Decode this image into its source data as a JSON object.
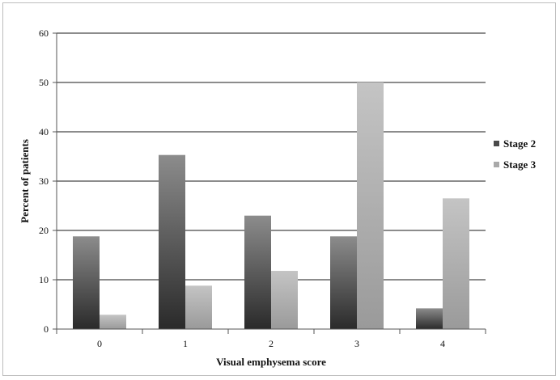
{
  "chart_data": {
    "type": "bar",
    "title": "",
    "xlabel": "Visual emphysema score",
    "ylabel": "Percent of patients",
    "categories": [
      "0",
      "1",
      "2",
      "3",
      "4"
    ],
    "series": [
      {
        "name": "Stage 2",
        "values": [
          18.8,
          35.3,
          23.0,
          18.8,
          4.2
        ],
        "color": "#4a4a4a"
      },
      {
        "name": "Stage 3",
        "values": [
          2.9,
          8.8,
          11.8,
          50.0,
          26.5
        ],
        "color": "#a9a9a9"
      }
    ],
    "ylim": [
      0,
      60
    ],
    "yticks": [
      0,
      10,
      20,
      30,
      40,
      50,
      60
    ],
    "grid": true,
    "legend": "right"
  }
}
